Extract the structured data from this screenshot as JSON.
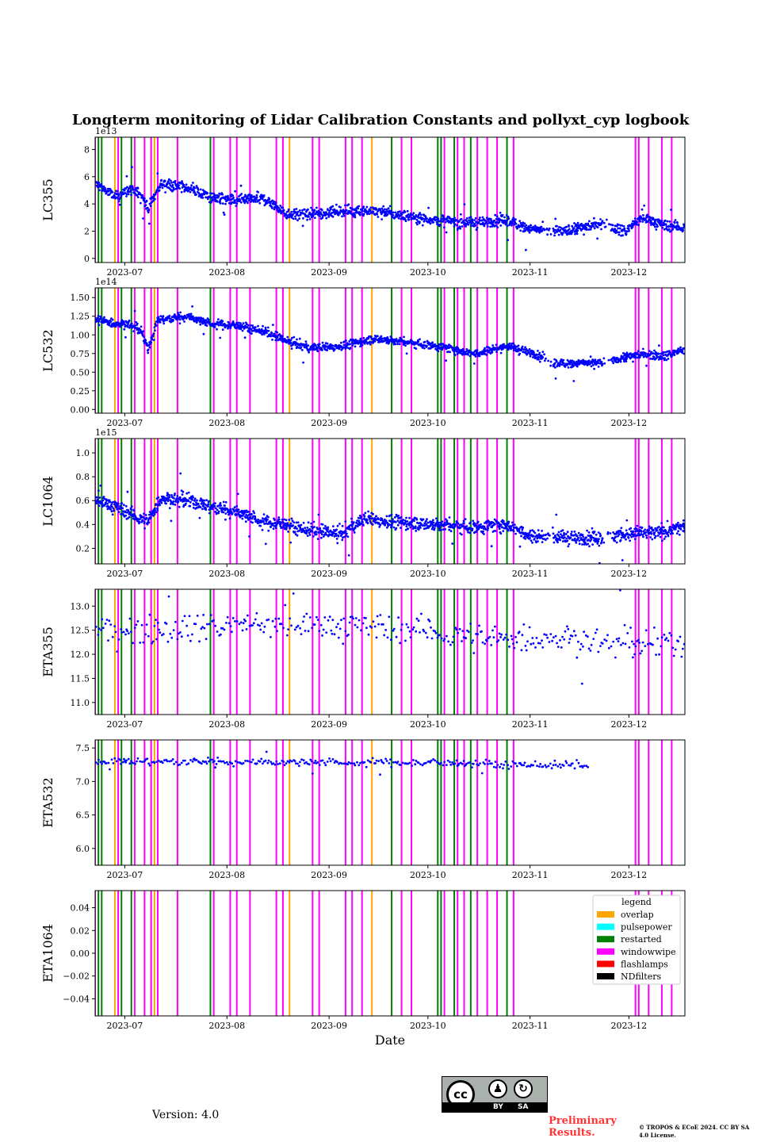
{
  "title": "Longterm monitoring of Lidar Calibration Constants and pollyxt_cyp logbook",
  "footer": {
    "version": "Version: 4.0",
    "cc_label": "cc",
    "by_label": "BY",
    "sa_label": "SA",
    "preliminary": "Preliminary Results.",
    "copyright": "© TROPOS & ECoE 2024. CC BY SA 4.0 License."
  },
  "chart_data": {
    "type": "scatter",
    "xlabel": "Date",
    "xlim": [
      "2023-06-22",
      "2023-12-18"
    ],
    "xticks": [
      "2023-07-01",
      "2023-08-01",
      "2023-09-01",
      "2023-10-01",
      "2023-11-01",
      "2023-12-01"
    ],
    "xtick_labels": [
      "2023-07",
      "2023-08",
      "2023-09",
      "2023-10",
      "2023-11",
      "2023-12"
    ],
    "point_color": "#0000ff",
    "panels": [
      {
        "ylabel": "LC355",
        "multiplier": "1e13",
        "ylim": [
          -0.3,
          8.9
        ],
        "yticks": [
          0,
          2,
          4,
          6,
          8
        ],
        "yticklabels": [
          "0",
          "2",
          "4",
          "6",
          "8"
        ],
        "trend": [
          [
            "2023-06-23",
            5.4
          ],
          [
            "2023-06-28",
            4.5
          ],
          [
            "2023-07-02",
            5.0
          ],
          [
            "2023-07-06",
            4.8
          ],
          [
            "2023-07-08",
            3.6
          ],
          [
            "2023-07-10",
            4.6
          ],
          [
            "2023-07-12",
            5.5
          ],
          [
            "2023-07-20",
            5.2
          ],
          [
            "2023-07-27",
            4.5
          ],
          [
            "2023-08-04",
            4.2
          ],
          [
            "2023-08-12",
            4.4
          ],
          [
            "2023-08-19",
            3.3
          ],
          [
            "2023-08-26",
            3.2
          ],
          [
            "2023-09-05",
            3.5
          ],
          [
            "2023-09-15",
            3.5
          ],
          [
            "2023-09-25",
            3.1
          ],
          [
            "2023-10-04",
            2.8
          ],
          [
            "2023-10-15",
            2.6
          ],
          [
            "2023-10-25",
            2.8
          ],
          [
            "2023-11-02",
            2.1
          ],
          [
            "2023-11-12",
            2.0
          ],
          [
            "2023-11-22",
            2.6
          ],
          [
            "2023-11-30",
            2.0
          ],
          [
            "2023-12-05",
            3.0
          ],
          [
            "2023-12-12",
            2.4
          ],
          [
            "2023-12-18",
            2.3
          ]
        ],
        "noise": 0.35
      },
      {
        "ylabel": "LC532",
        "multiplier": "1e14",
        "ylim": [
          -0.05,
          1.63
        ],
        "yticks": [
          0,
          0.25,
          0.5,
          0.75,
          1.0,
          1.25,
          1.5
        ],
        "yticklabels": [
          "0.00",
          "0.25",
          "0.50",
          "0.75",
          "1.00",
          "1.25",
          "1.50"
        ],
        "trend": [
          [
            "2023-06-23",
            1.2
          ],
          [
            "2023-06-28",
            1.15
          ],
          [
            "2023-07-02",
            1.15
          ],
          [
            "2023-07-06",
            1.05
          ],
          [
            "2023-07-08",
            0.8
          ],
          [
            "2023-07-11",
            1.2
          ],
          [
            "2023-07-20",
            1.25
          ],
          [
            "2023-07-27",
            1.15
          ],
          [
            "2023-08-05",
            1.12
          ],
          [
            "2023-08-12",
            1.05
          ],
          [
            "2023-08-19",
            0.92
          ],
          [
            "2023-08-26",
            0.82
          ],
          [
            "2023-09-05",
            0.85
          ],
          [
            "2023-09-15",
            0.95
          ],
          [
            "2023-09-25",
            0.9
          ],
          [
            "2023-10-04",
            0.85
          ],
          [
            "2023-10-15",
            0.75
          ],
          [
            "2023-10-25",
            0.85
          ],
          [
            "2023-11-02",
            0.75
          ],
          [
            "2023-11-08",
            0.62
          ],
          [
            "2023-11-22",
            0.62
          ],
          [
            "2023-11-30",
            0.7
          ],
          [
            "2023-12-05",
            0.75
          ],
          [
            "2023-12-12",
            0.72
          ],
          [
            "2023-12-18",
            0.8
          ]
        ],
        "noise": 0.05
      },
      {
        "ylabel": "LC1064",
        "multiplier": "1e15",
        "ylim": [
          0.07,
          1.12
        ],
        "yticks": [
          0.2,
          0.4,
          0.6,
          0.8,
          1.0
        ],
        "yticklabels": [
          "0.2",
          "0.4",
          "0.6",
          "0.8",
          "1.0"
        ],
        "trend": [
          [
            "2023-06-23",
            0.6
          ],
          [
            "2023-06-28",
            0.55
          ],
          [
            "2023-07-02",
            0.5
          ],
          [
            "2023-07-08",
            0.42
          ],
          [
            "2023-07-12",
            0.62
          ],
          [
            "2023-07-20",
            0.6
          ],
          [
            "2023-07-27",
            0.55
          ],
          [
            "2023-08-05",
            0.5
          ],
          [
            "2023-08-12",
            0.42
          ],
          [
            "2023-08-19",
            0.4
          ],
          [
            "2023-08-26",
            0.35
          ],
          [
            "2023-09-05",
            0.32
          ],
          [
            "2023-09-12",
            0.45
          ],
          [
            "2023-09-20",
            0.42
          ],
          [
            "2023-10-04",
            0.4
          ],
          [
            "2023-10-15",
            0.38
          ],
          [
            "2023-10-25",
            0.4
          ],
          [
            "2023-11-02",
            0.3
          ],
          [
            "2023-11-22",
            0.28
          ],
          [
            "2023-11-30",
            0.32
          ],
          [
            "2023-12-10",
            0.33
          ],
          [
            "2023-12-18",
            0.38
          ]
        ],
        "noise": 0.05
      },
      {
        "ylabel": "ETA355",
        "multiplier": "",
        "ylim": [
          10.75,
          13.35
        ],
        "yticks": [
          11.0,
          11.5,
          12.0,
          12.5,
          13.0
        ],
        "yticklabels": [
          "11.0",
          "11.5",
          "12.0",
          "12.5",
          "13.0"
        ],
        "trend": [
          [
            "2023-06-23",
            12.5
          ],
          [
            "2023-08-01",
            12.6
          ],
          [
            "2023-09-01",
            12.6
          ],
          [
            "2023-10-01",
            12.5
          ],
          [
            "2023-10-20",
            12.3
          ],
          [
            "2023-11-10",
            12.35
          ],
          [
            "2023-12-01",
            12.2
          ],
          [
            "2023-12-18",
            12.2
          ]
        ],
        "noise": 0.25,
        "sparse": true
      },
      {
        "ylabel": "ETA532",
        "multiplier": "",
        "ylim": [
          5.75,
          7.62
        ],
        "yticks": [
          6.0,
          6.5,
          7.0,
          7.5
        ],
        "yticklabels": [
          "6.0",
          "6.5",
          "7.0",
          "7.5"
        ],
        "trend": [
          [
            "2023-06-23",
            7.3
          ],
          [
            "2023-10-01",
            7.28
          ],
          [
            "2023-11-01",
            7.25
          ],
          [
            "2023-12-18",
            7.22
          ]
        ],
        "noise": 0.05,
        "sparse": true,
        "data_end": "2023-11-19"
      },
      {
        "ylabel": "ETA1064",
        "multiplier": "",
        "ylim": [
          -0.055,
          0.055
        ],
        "yticks": [
          -0.04,
          -0.02,
          0.0,
          0.02,
          0.04
        ],
        "yticklabels": [
          "−0.04",
          "−0.02",
          "0.00",
          "0.02",
          "0.04"
        ],
        "trend": [],
        "noise": 0
      }
    ],
    "logbook_events": {
      "overlap": [
        "2023-06-28",
        "2023-07-09",
        "2023-07-10",
        "2023-08-20",
        "2023-09-14",
        "2023-10-12"
      ],
      "restarted": [
        "2023-06-22",
        "2023-06-23",
        "2023-06-24",
        "2023-06-30",
        "2023-07-03",
        "2023-07-27",
        "2023-09-20",
        "2023-10-04",
        "2023-10-05",
        "2023-10-09",
        "2023-10-14",
        "2023-10-25"
      ],
      "windowwipe": [
        "2023-06-22",
        "2023-06-29",
        "2023-07-04",
        "2023-07-07",
        "2023-07-09",
        "2023-07-11",
        "2023-07-17",
        "2023-07-28",
        "2023-08-02",
        "2023-08-04",
        "2023-08-08",
        "2023-08-16",
        "2023-08-18",
        "2023-08-27",
        "2023-08-29",
        "2023-09-06",
        "2023-09-08",
        "2023-09-11",
        "2023-09-23",
        "2023-09-26",
        "2023-10-06",
        "2023-10-10",
        "2023-10-12",
        "2023-10-16",
        "2023-10-19",
        "2023-10-22",
        "2023-10-27",
        "2023-12-03",
        "2023-12-04",
        "2023-12-07",
        "2023-12-11",
        "2023-12-14"
      ]
    },
    "legend": {
      "title": "legend",
      "placement": "top-right of last panel",
      "entries": [
        {
          "label": "overlap",
          "color": "#ffa500"
        },
        {
          "label": "pulsepower",
          "color": "#00ffff"
        },
        {
          "label": "restarted",
          "color": "#008000"
        },
        {
          "label": "windowwipe",
          "color": "#ff00ff"
        },
        {
          "label": "flashlamps",
          "color": "#ff0000"
        },
        {
          "label": "NDfilters",
          "color": "#000000"
        }
      ]
    }
  }
}
